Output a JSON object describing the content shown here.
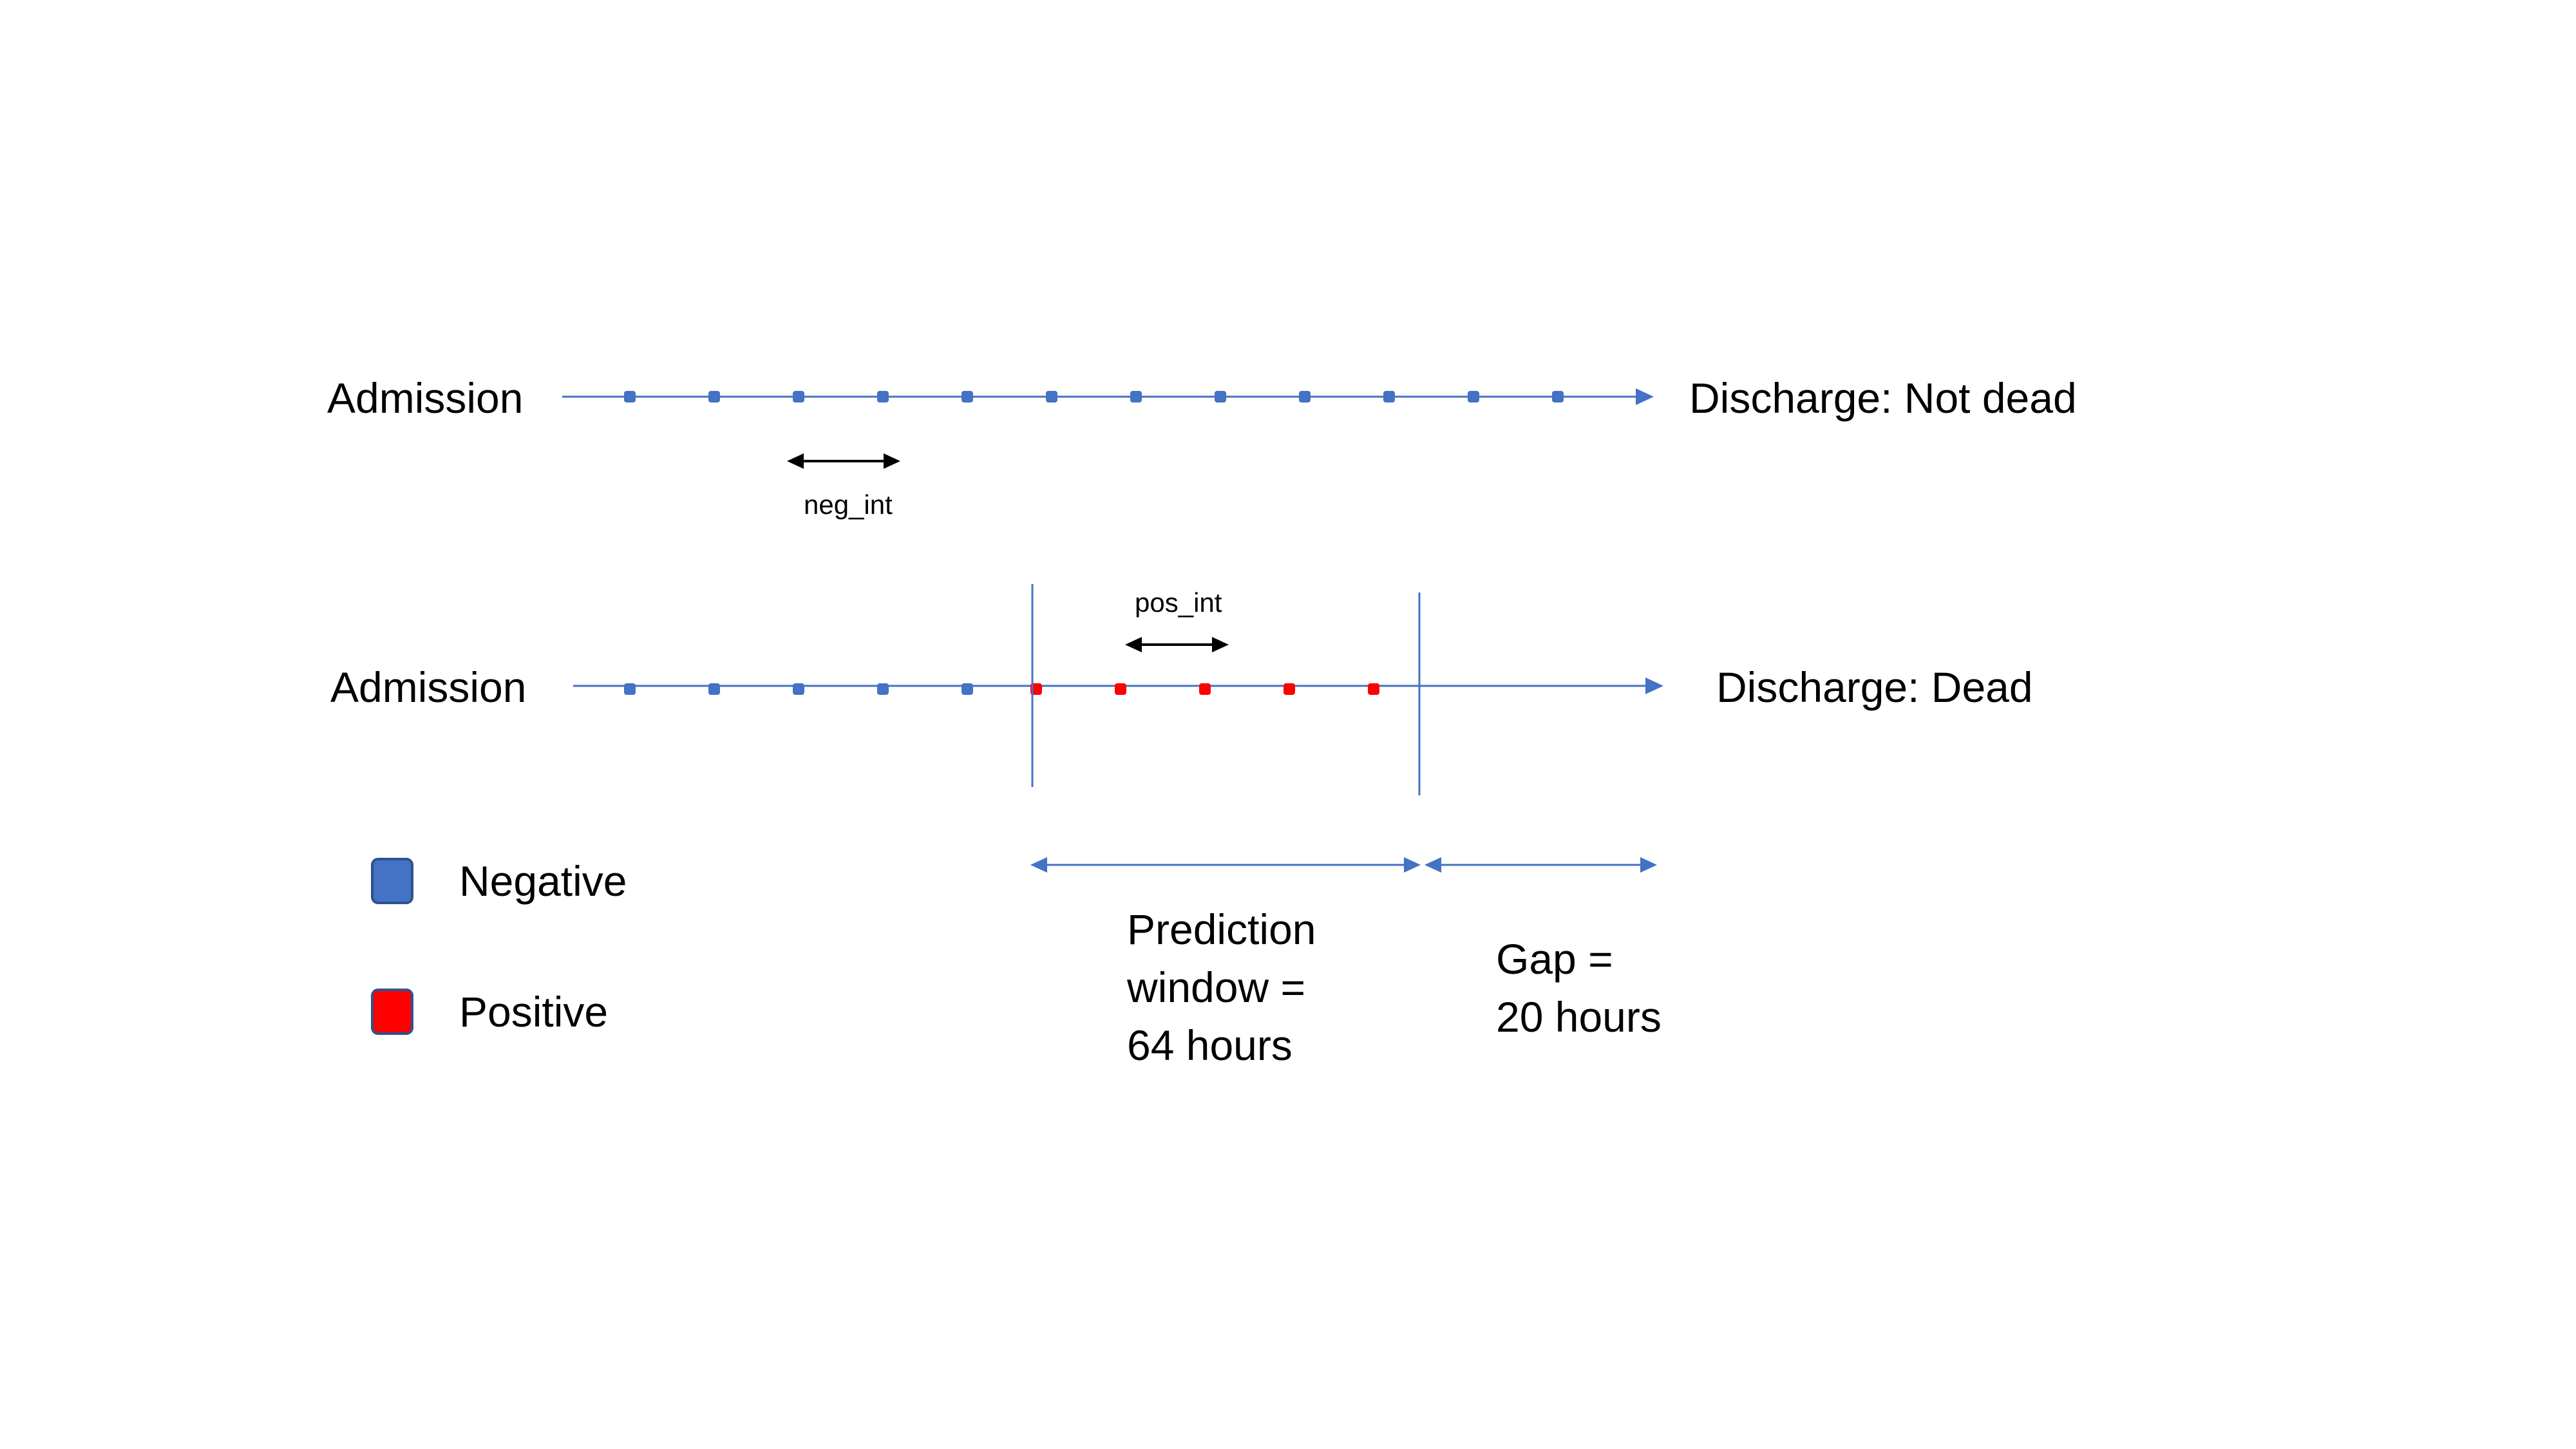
{
  "colors": {
    "negative": "#4472C4",
    "positive": "#FF0000",
    "axis": "#4472C4",
    "interval_arrow": "#000000"
  },
  "timeline_alive": {
    "start_label": "Admission",
    "end_label": "Discharge: Not dead",
    "interval_label": "neg_int",
    "points": [
      "negative",
      "negative",
      "negative",
      "negative",
      "negative",
      "negative",
      "negative",
      "negative",
      "negative",
      "negative",
      "negative",
      "negative"
    ]
  },
  "timeline_dead": {
    "start_label": "Admission",
    "end_label": "Discharge: Dead",
    "interval_label": "pos_int",
    "points": [
      "negative",
      "negative",
      "negative",
      "negative",
      "negative",
      "positive",
      "positive",
      "positive",
      "positive",
      "positive"
    ]
  },
  "windows": {
    "prediction": {
      "lines": [
        "Prediction",
        "window =",
        "64 hours"
      ]
    },
    "gap": {
      "lines": [
        "Gap =",
        "20 hours"
      ]
    }
  },
  "legend": [
    {
      "label": "Negative",
      "color_key": "negative"
    },
    {
      "label": "Positive",
      "color_key": "positive"
    }
  ]
}
